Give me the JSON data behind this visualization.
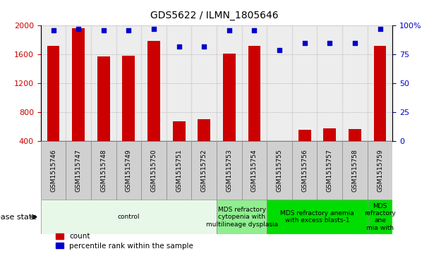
{
  "title": "GDS5622 / ILMN_1805646",
  "samples": [
    "GSM1515746",
    "GSM1515747",
    "GSM1515748",
    "GSM1515749",
    "GSM1515750",
    "GSM1515751",
    "GSM1515752",
    "GSM1515753",
    "GSM1515754",
    "GSM1515755",
    "GSM1515756",
    "GSM1515757",
    "GSM1515758",
    "GSM1515759"
  ],
  "counts": [
    1720,
    1960,
    1570,
    1580,
    1790,
    670,
    700,
    1610,
    1720,
    370,
    550,
    570,
    560,
    1720
  ],
  "percentiles": [
    96,
    97,
    96,
    96,
    97,
    82,
    82,
    96,
    96,
    79,
    85,
    85,
    85,
    97
  ],
  "bar_color": "#cc0000",
  "dot_color": "#0000cc",
  "ylim_left": [
    400,
    2000
  ],
  "ylim_right": [
    0,
    100
  ],
  "yticks_left": [
    400,
    800,
    1200,
    1600,
    2000
  ],
  "yticks_right": [
    0,
    25,
    50,
    75,
    100
  ],
  "background_color": "#ffffff",
  "legend_count_label": "count",
  "legend_pct_label": "percentile rank within the sample",
  "disease_label": "disease state",
  "groups": [
    {
      "label": "control",
      "start": 0,
      "end": 6,
      "color": "#e8f8e8"
    },
    {
      "label": "MDS refractory\ncytopenia with\nmultilineage dysplasia",
      "start": 7,
      "end": 8,
      "color": "#90ee90"
    },
    {
      "label": "MDS refractory anemia\nwith excess blasts-1",
      "start": 9,
      "end": 12,
      "color": "#00dd00"
    },
    {
      "label": "MDS\nrefractory\nane\nmia with",
      "start": 13,
      "end": 13,
      "color": "#00dd00"
    }
  ],
  "tick_bg_color": "#d0d0d0",
  "grid_color": "#aaaaaa",
  "title_fontsize": 10,
  "tick_fontsize": 6.5,
  "axis_fontsize": 8
}
